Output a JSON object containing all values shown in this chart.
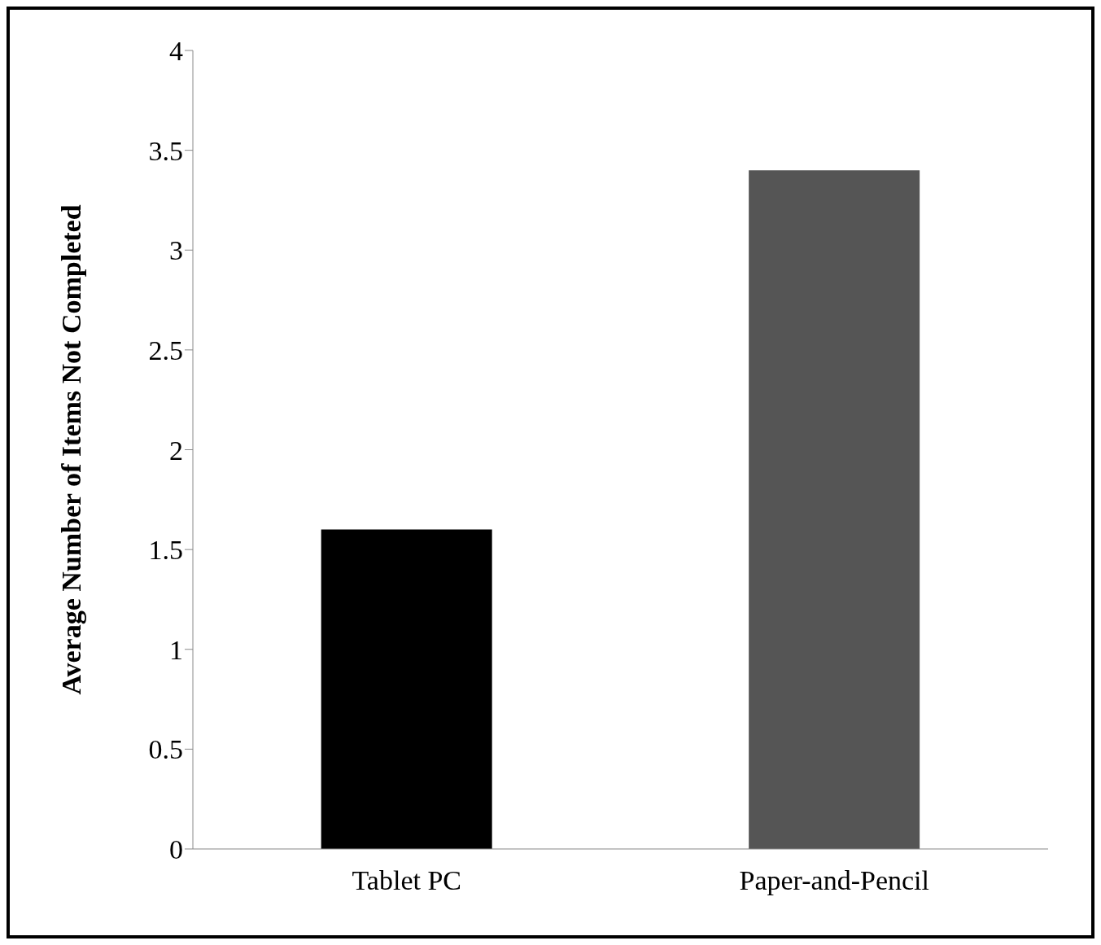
{
  "chart_data": {
    "type": "bar",
    "ylabel": "Average Number of Items Not Completed",
    "categories": [
      "Tablet PC",
      "Paper-and-Pencil"
    ],
    "values": [
      1.6,
      3.4
    ],
    "colors": [
      "#000000",
      "#555555"
    ],
    "ylim": [
      0,
      4
    ],
    "yticks": [
      0,
      0.5,
      1,
      1.5,
      2,
      2.5,
      3,
      3.5,
      4
    ],
    "grid": false,
    "legend": false
  }
}
